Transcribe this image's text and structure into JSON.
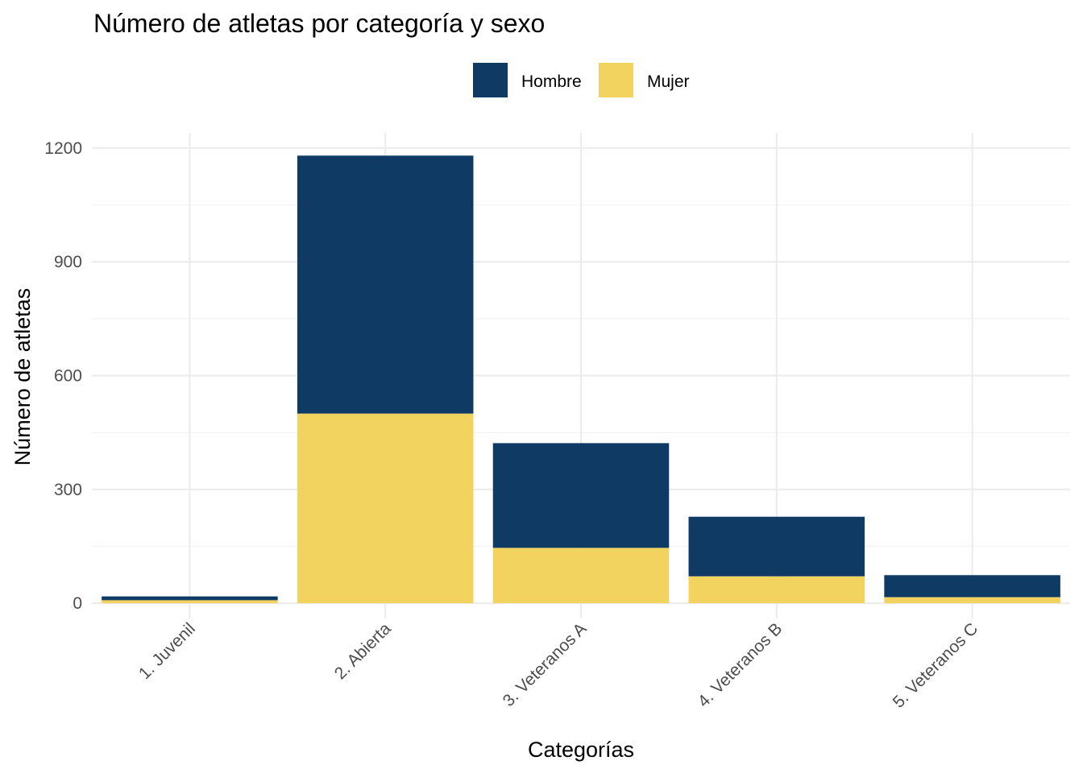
{
  "chart_data": {
    "type": "bar",
    "stacked": true,
    "title": "Número de atletas por categoría y sexo",
    "xlabel": "Categorías",
    "ylabel": "Número de atletas",
    "categories": [
      "1. Juvenil",
      "2. Abierta",
      "3. Veteranos A",
      "4. Veteranos B",
      "5. Veteranos C"
    ],
    "series": [
      {
        "name": "Mujer",
        "color": "#F2D35F",
        "values": [
          8,
          500,
          146,
          71,
          16
        ]
      },
      {
        "name": "Hombre",
        "color": "#0F3A64",
        "values": [
          10,
          680,
          276,
          157,
          58
        ]
      }
    ],
    "legend_order": [
      "Hombre",
      "Mujer"
    ],
    "legend_position": "top",
    "ylim": [
      -40,
      1240
    ],
    "yticks": [
      0,
      300,
      600,
      900,
      1200
    ],
    "grid": true
  }
}
